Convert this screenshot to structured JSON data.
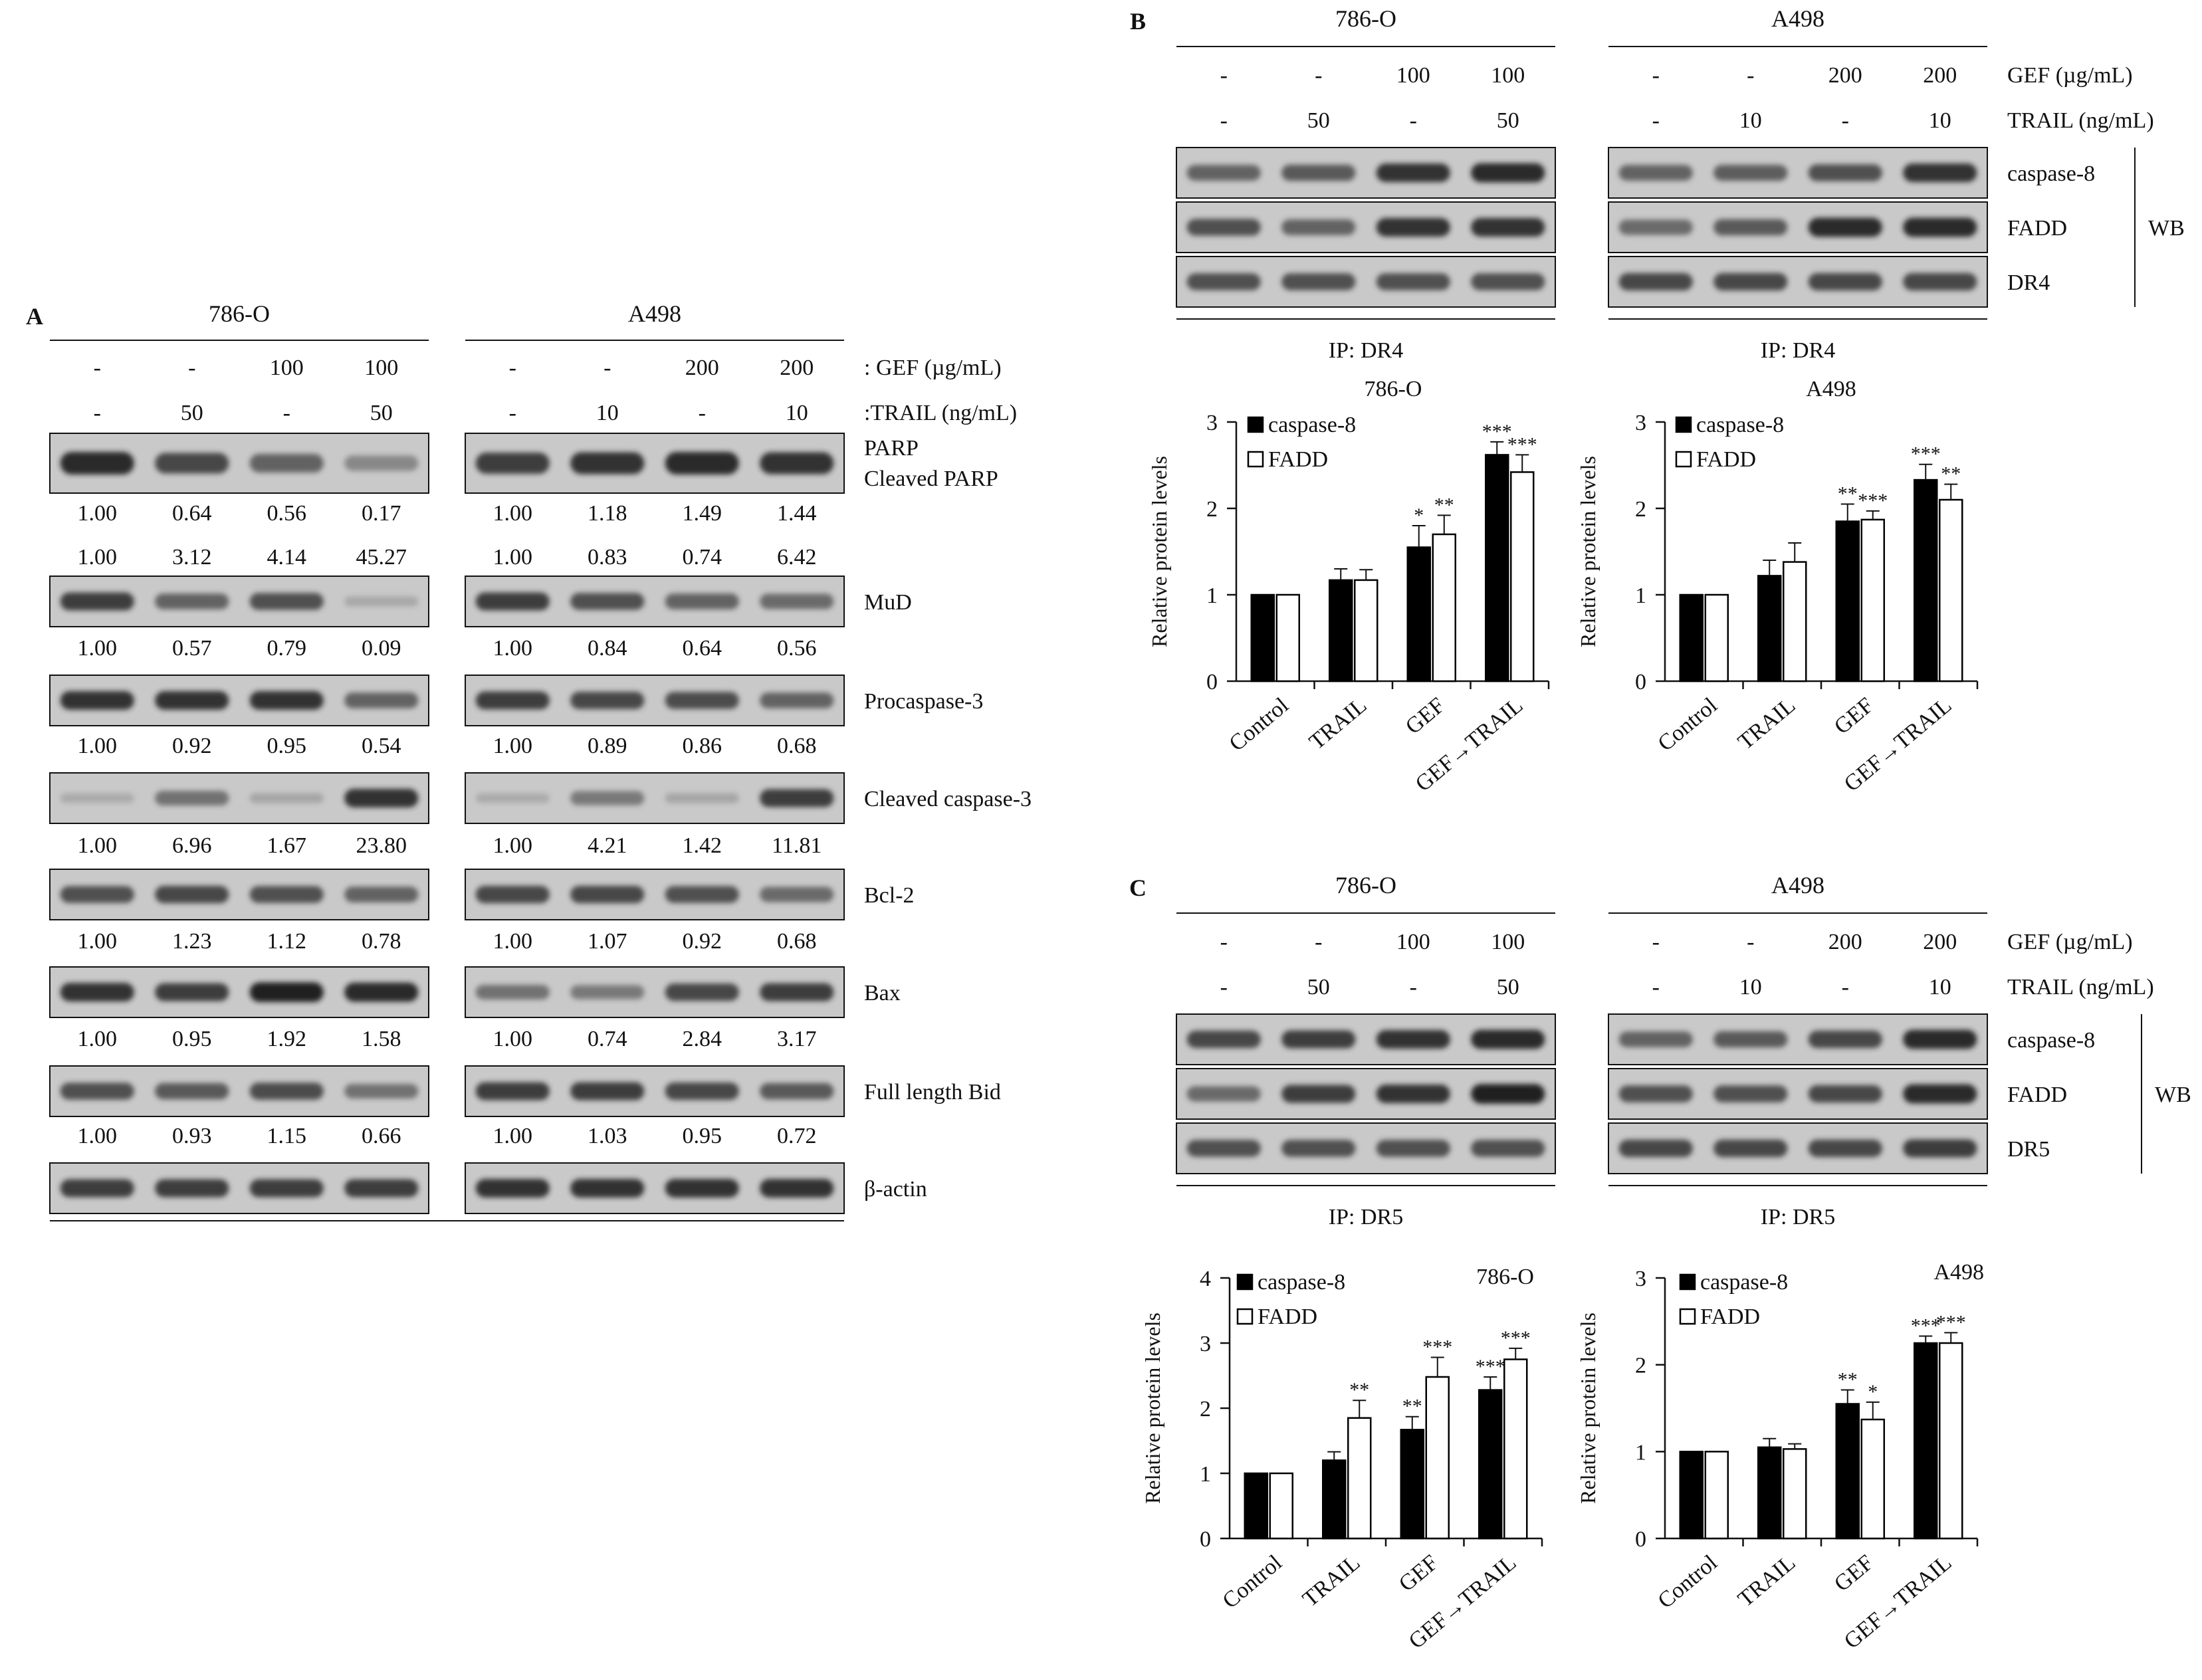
{
  "panelA": {
    "letter": "A",
    "lines": [
      "786-O",
      "A498"
    ],
    "gefLabel": ": GEF (µg/mL)",
    "trailLabel": ":TRAIL (ng/mL)",
    "gef": [
      [
        "-",
        "-",
        "100",
        "100"
      ],
      [
        "-",
        "-",
        "200",
        "200"
      ]
    ],
    "trail": [
      [
        "-",
        "50",
        "-",
        "50"
      ],
      [
        "-",
        "10",
        "-",
        "10"
      ]
    ],
    "blots": [
      {
        "labels": [
          "PARP",
          "Cleaved PARP"
        ],
        "rows": [
          [
            "1.00",
            "0.64",
            "0.56",
            "0.17",
            "1.00",
            "1.18",
            "1.49",
            "1.44"
          ],
          [
            "1.00",
            "3.12",
            "4.14",
            "45.27",
            "1.00",
            "0.83",
            "0.74",
            "6.42"
          ]
        ],
        "bands": [
          [
            0.9,
            0.75,
            0.6,
            0.35
          ],
          [
            0.8,
            0.85,
            0.9,
            0.85
          ]
        ]
      },
      {
        "labels": [
          "MuD"
        ],
        "rows": [
          [
            "1.00",
            "0.57",
            "0.79",
            "0.09",
            "1.00",
            "0.84",
            "0.64",
            "0.56"
          ]
        ],
        "bands": [
          [
            0.8,
            0.6,
            0.7,
            0.08
          ],
          [
            0.8,
            0.7,
            0.6,
            0.55
          ]
        ]
      },
      {
        "labels": [
          "Procaspase-3"
        ],
        "rows": [
          [
            "1.00",
            "0.92",
            "0.95",
            "0.54",
            "1.00",
            "0.89",
            "0.86",
            "0.68"
          ]
        ],
        "bands": [
          [
            0.85,
            0.85,
            0.85,
            0.6
          ],
          [
            0.8,
            0.75,
            0.72,
            0.6
          ]
        ]
      },
      {
        "labels": [
          "Cleaved caspase-3"
        ],
        "rows": [
          [
            "1.00",
            "6.96",
            "1.67",
            "23.80",
            "1.00",
            "4.21",
            "1.42",
            "11.81"
          ]
        ],
        "bands": [
          [
            0.05,
            0.5,
            0.1,
            0.85
          ],
          [
            0.05,
            0.45,
            0.1,
            0.8
          ]
        ]
      },
      {
        "labels": [
          "Bcl-2"
        ],
        "rows": [
          [
            "1.00",
            "1.23",
            "1.12",
            "0.78",
            "1.00",
            "1.07",
            "0.92",
            "0.68"
          ]
        ],
        "bands": [
          [
            0.7,
            0.75,
            0.7,
            0.6
          ],
          [
            0.75,
            0.75,
            0.7,
            0.55
          ]
        ]
      },
      {
        "labels": [
          "Bax"
        ],
        "rows": [
          [
            "1.00",
            "0.95",
            "1.92",
            "1.58",
            "1.00",
            "0.74",
            "2.84",
            "3.17"
          ]
        ],
        "bands": [
          [
            0.85,
            0.8,
            0.95,
            0.9
          ],
          [
            0.5,
            0.45,
            0.75,
            0.8
          ]
        ]
      },
      {
        "labels": [
          "Full length Bid"
        ],
        "rows": [
          [
            "1.00",
            "0.93",
            "1.15",
            "0.66",
            "1.00",
            "1.03",
            "0.95",
            "0.72"
          ]
        ],
        "bands": [
          [
            0.7,
            0.65,
            0.72,
            0.5
          ],
          [
            0.8,
            0.8,
            0.75,
            0.65
          ]
        ]
      },
      {
        "labels": [
          "β-actin"
        ],
        "rows": [],
        "bands": [
          [
            0.8,
            0.8,
            0.8,
            0.8
          ],
          [
            0.85,
            0.85,
            0.85,
            0.85
          ]
        ]
      }
    ]
  },
  "panelB": {
    "letter": "B",
    "lines": [
      "786-O",
      "A498"
    ],
    "gefLabel": "GEF (µg/mL)",
    "trailLabel": "TRAIL (ng/mL)",
    "gef": [
      [
        "-",
        "-",
        "100",
        "100"
      ],
      [
        "-",
        "-",
        "200",
        "200"
      ]
    ],
    "trail": [
      [
        "-",
        "50",
        "-",
        "50"
      ],
      [
        "-",
        "10",
        "-",
        "10"
      ]
    ],
    "blotLabels": [
      "caspase-8",
      "FADD",
      "DR4"
    ],
    "wb": "WB",
    "ip": "IP: DR4",
    "bands": [
      [
        [
          0.6,
          0.65,
          0.85,
          0.9
        ],
        [
          0.6,
          0.62,
          0.7,
          0.85
        ]
      ],
      [
        [
          0.7,
          0.6,
          0.85,
          0.85
        ],
        [
          0.55,
          0.65,
          0.9,
          0.9
        ]
      ],
      [
        [
          0.7,
          0.7,
          0.7,
          0.7
        ],
        [
          0.75,
          0.75,
          0.75,
          0.75
        ]
      ]
    ]
  },
  "panelC": {
    "letter": "C",
    "lines": [
      "786-O",
      "A498"
    ],
    "gefLabel": "GEF (µg/mL)",
    "trailLabel": "TRAIL (ng/mL)",
    "gef": [
      [
        "-",
        "-",
        "100",
        "100"
      ],
      [
        "-",
        "-",
        "200",
        "200"
      ]
    ],
    "trail": [
      [
        "-",
        "50",
        "-",
        "50"
      ],
      [
        "-",
        "10",
        "-",
        "10"
      ]
    ],
    "blotLabels": [
      "caspase-8",
      "FADD",
      "DR5"
    ],
    "wb": "WB",
    "ip": "IP: DR5",
    "bands": [
      [
        [
          0.75,
          0.8,
          0.85,
          0.9
        ],
        [
          0.6,
          0.65,
          0.75,
          0.9
        ]
      ],
      [
        [
          0.55,
          0.8,
          0.85,
          0.95
        ],
        [
          0.7,
          0.7,
          0.75,
          0.9
        ]
      ],
      [
        [
          0.7,
          0.7,
          0.7,
          0.7
        ],
        [
          0.75,
          0.75,
          0.75,
          0.8
        ]
      ]
    ]
  },
  "chart_data": [
    {
      "type": "bar",
      "title": "786-O",
      "ylabel": "Relative protein levels",
      "ylim": [
        0,
        3
      ],
      "yticks": [
        0,
        1,
        2,
        3
      ],
      "categories": [
        "Control",
        "TRAIL",
        "GEF",
        "GEF→TRAIL"
      ],
      "series": [
        {
          "name": "caspase-8",
          "values": [
            1.0,
            1.17,
            1.55,
            2.62
          ],
          "errors": [
            0.0,
            0.13,
            0.25,
            0.15
          ],
          "sig": [
            "",
            "",
            "*",
            "***"
          ]
        },
        {
          "name": "FADD",
          "values": [
            1.0,
            1.17,
            1.7,
            2.42
          ],
          "errors": [
            0.0,
            0.12,
            0.22,
            0.2
          ],
          "sig": [
            "",
            "",
            "**",
            "***"
          ]
        }
      ]
    },
    {
      "type": "bar",
      "title": "A498",
      "ylabel": "Relative protein levels",
      "ylim": [
        0,
        3
      ],
      "yticks": [
        0,
        1,
        2,
        3
      ],
      "categories": [
        "Control",
        "TRAIL",
        "GEF",
        "GEF→TRAIL"
      ],
      "series": [
        {
          "name": "caspase-8",
          "values": [
            1.0,
            1.22,
            1.85,
            2.33
          ],
          "errors": [
            0.0,
            0.18,
            0.2,
            0.18
          ],
          "sig": [
            "",
            "",
            "**",
            "***"
          ]
        },
        {
          "name": "FADD",
          "values": [
            1.0,
            1.38,
            1.87,
            2.1
          ],
          "errors": [
            0.0,
            0.22,
            0.1,
            0.18
          ],
          "sig": [
            "",
            "",
            "***",
            "**"
          ]
        }
      ]
    },
    {
      "type": "bar",
      "title": "786-O",
      "ylabel": "Relative protein levels",
      "ylim": [
        0,
        4
      ],
      "yticks": [
        0,
        1,
        2,
        3,
        4
      ],
      "categories": [
        "Control",
        "TRAIL",
        "GEF",
        "GEF→TRAIL"
      ],
      "series": [
        {
          "name": "caspase-8",
          "values": [
            1.0,
            1.2,
            1.67,
            2.28
          ],
          "errors": [
            0.0,
            0.13,
            0.2,
            0.2
          ],
          "sig": [
            "",
            "",
            "**",
            "***"
          ]
        },
        {
          "name": "FADD",
          "values": [
            1.0,
            1.85,
            2.48,
            2.75
          ],
          "errors": [
            0.0,
            0.27,
            0.3,
            0.17
          ],
          "sig": [
            "",
            "**",
            "***",
            "***"
          ]
        }
      ]
    },
    {
      "type": "bar",
      "title": "A498",
      "ylabel": "Relative protein levels",
      "ylim": [
        0,
        3
      ],
      "yticks": [
        0,
        1,
        2,
        3
      ],
      "categories": [
        "Control",
        "TRAIL",
        "GEF",
        "GEF→TRAIL"
      ],
      "series": [
        {
          "name": "caspase-8",
          "values": [
            1.0,
            1.05,
            1.55,
            2.25
          ],
          "errors": [
            0.0,
            0.1,
            0.16,
            0.08
          ],
          "sig": [
            "",
            "",
            "**",
            "***"
          ]
        },
        {
          "name": "FADD",
          "values": [
            1.0,
            1.03,
            1.37,
            2.25
          ],
          "errors": [
            0.0,
            0.06,
            0.2,
            0.12
          ],
          "sig": [
            "",
            "",
            "*",
            "***"
          ]
        }
      ]
    }
  ]
}
